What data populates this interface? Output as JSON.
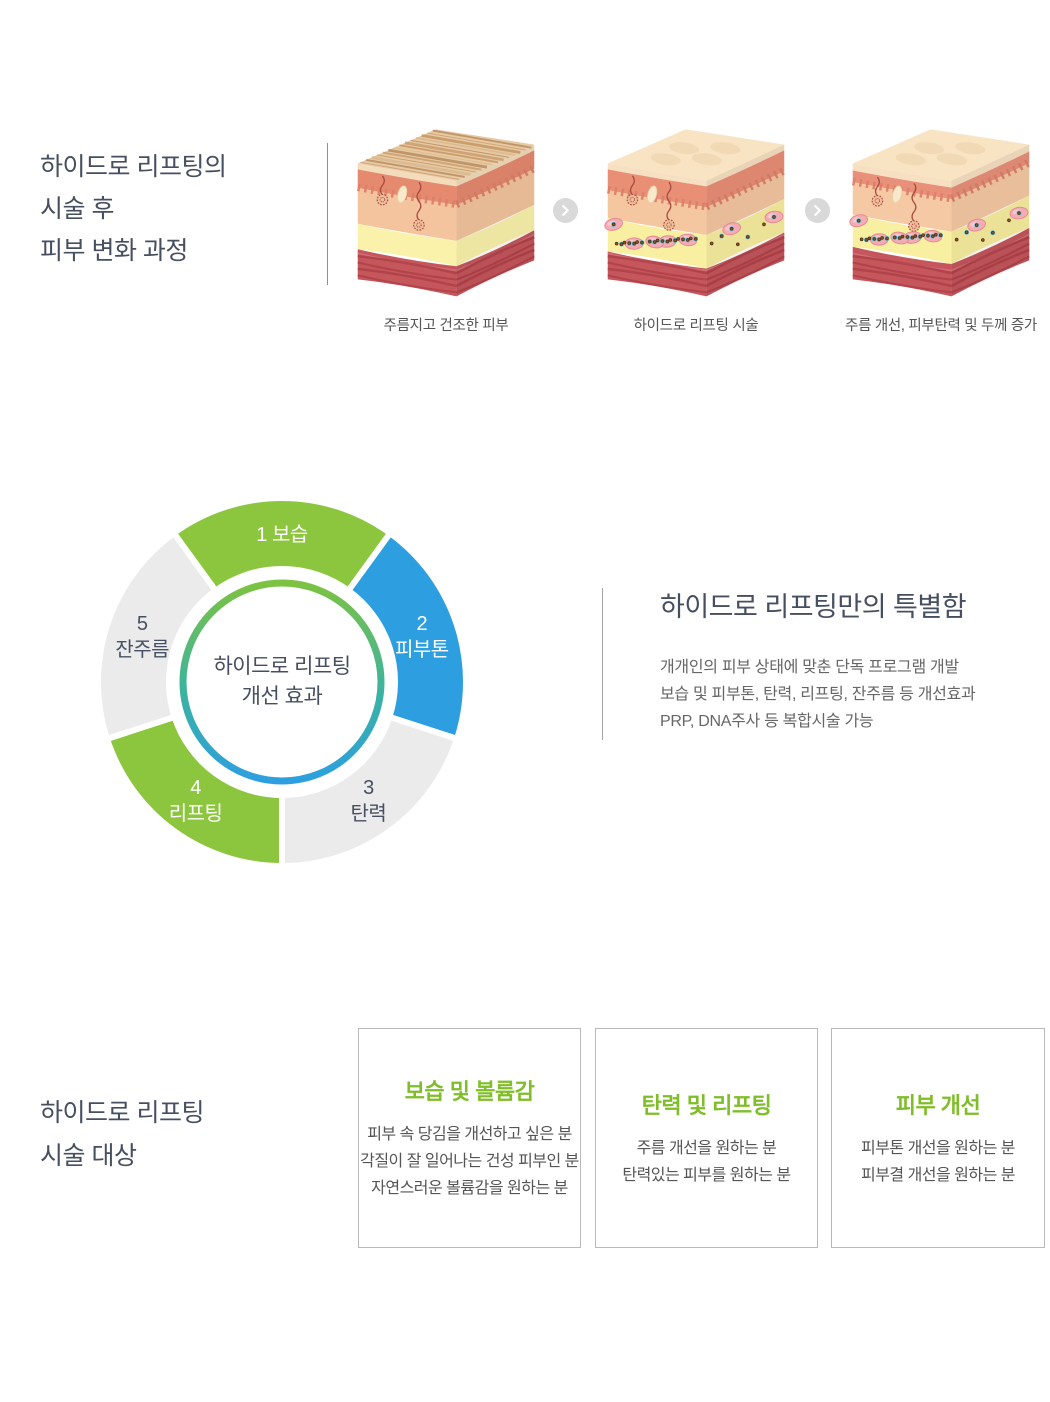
{
  "process_section": {
    "title_lines": [
      "하이드로 리프팅의",
      "시술 후",
      "피부 변화 과정"
    ],
    "steps": [
      {
        "label": "주름지고 건조한 피부",
        "type": "dry",
        "illustration": "skin-cross-section-wrinkled-dry"
      },
      {
        "label": "하이드로 리프팅 시술",
        "type": "treated",
        "illustration": "skin-cross-section-injected-particles"
      },
      {
        "label": "주름 개선, 피부탄력 및 두께 증가",
        "type": "improved",
        "illustration": "skin-cross-section-improved-thicker"
      }
    ],
    "arrow_icon": "chevron-right-icon"
  },
  "chart_section": {
    "heading": "하이드로 리프팅만의 특별함",
    "description_lines": [
      "개개인의 피부 상태에 맞춘 단독 프로그램 개발",
      "보습 및 피부톤, 탄력, 리프팅, 잔주름 등 개선효과",
      "PRP, DNA주사 등 복합시술 가능"
    ]
  },
  "chart_data": {
    "type": "pie",
    "subtype": "donut",
    "title": "하이드로 리프팅 개선 효과",
    "center_label_lines": [
      "하이드로 리프팅",
      "개선 효과"
    ],
    "legend_position": "inside-segments",
    "segments": [
      {
        "order": 1,
        "name": "보습",
        "label_lines": [
          "1 보습"
        ],
        "value": 72,
        "color": "#8CC63F",
        "text_color": "#FFFFFF"
      },
      {
        "order": 2,
        "name": "피부톤",
        "label_lines": [
          "2",
          "피부톤"
        ],
        "value": 72,
        "color": "#2D9FE0",
        "text_color": "#FFFFFF"
      },
      {
        "order": 3,
        "name": "탄력",
        "label_lines": [
          "3",
          "탄력"
        ],
        "value": 72,
        "color": "#EBEBEB",
        "text_color": "#475062"
      },
      {
        "order": 4,
        "name": "리프팅",
        "label_lines": [
          "4",
          "리프팅"
        ],
        "value": 72,
        "color": "#8CC63F",
        "text_color": "#FFFFFF"
      },
      {
        "order": 5,
        "name": "잔주름",
        "label_lines": [
          "5",
          "잔주름"
        ],
        "value": 72,
        "color": "#EBEBEB",
        "text_color": "#475062"
      }
    ],
    "ring_gradient": [
      "#7DC242",
      "#2D9FE0"
    ]
  },
  "targets_section": {
    "title_lines": [
      "하이드로 리프팅",
      "시술 대상"
    ],
    "cards": [
      {
        "title": "보습 및 볼륨감",
        "lines": [
          "피부 속 당김을 개선하고 싶은 분",
          "각질이 잘 일어나는 건성 피부인 분",
          "자연스러운 볼륨감을 원하는 분"
        ]
      },
      {
        "title": "탄력 및 리프팅",
        "lines": [
          "주름 개선을 원하는 분",
          "탄력있는 피부를 원하는 분"
        ]
      },
      {
        "title": "피부 개선",
        "lines": [
          "피부톤 개선을 원하는 분",
          "피부결 개선을 원하는 분"
        ]
      }
    ]
  },
  "colors": {
    "brand_green": "#8CC63F",
    "brand_blue": "#2D9FE0",
    "segment_gray": "#EBEBEB",
    "heading_text": "#454F60",
    "body_text": "#666666",
    "card_title_green": "#7FBE28",
    "divider_gray": "#8F8F8F",
    "arrow_circle_gray": "#D9D9D9"
  }
}
